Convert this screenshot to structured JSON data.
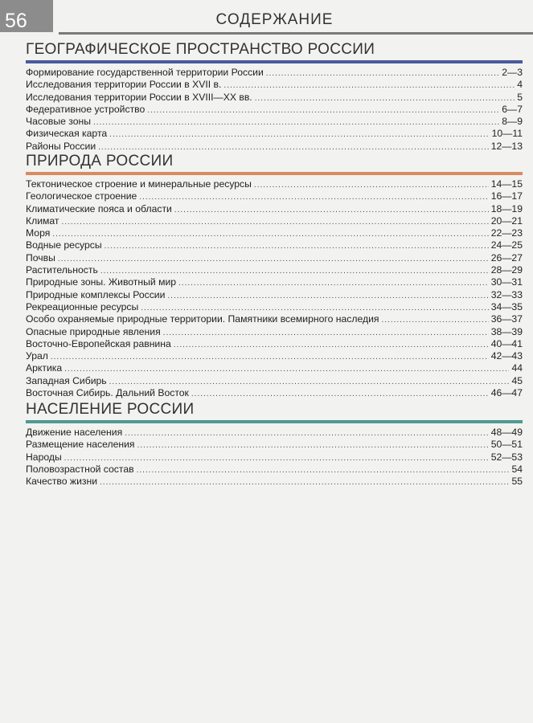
{
  "header": {
    "page_number": "56",
    "title": "СОДЕРЖАНИЕ"
  },
  "colors": {
    "section_1": "#4a5a9c",
    "section_2": "#d88a62",
    "section_3": "#4f9a93"
  },
  "sections": [
    {
      "title": "ГЕОГРАФИЧЕСКОЕ ПРОСТРАНСТВО РОССИИ",
      "items": [
        {
          "label": "Формирование государственной территории России",
          "pages": "2—3"
        },
        {
          "label": "Исследования территории России в XVII в.",
          "pages": "4"
        },
        {
          "label": "Исследования территории России в XVIII—XX вв.",
          "pages": "5"
        },
        {
          "label": "Федеративное устройство",
          "pages": "6—7"
        },
        {
          "label": "Часовые зоны",
          "pages": "8—9"
        },
        {
          "label": "Физическая карта",
          "pages": "10—11"
        },
        {
          "label": "Районы России",
          "pages": "12—13"
        }
      ]
    },
    {
      "title": "ПРИРОДА РОССИИ",
      "items": [
        {
          "label": "Тектоническое строение и минеральные ресурсы",
          "pages": "14—15"
        },
        {
          "label": "Геологическое строение",
          "pages": "16—17"
        },
        {
          "label": "Климатические пояса и области",
          "pages": "18—19"
        },
        {
          "label": "Климат",
          "pages": "20—21"
        },
        {
          "label": "Моря",
          "pages": "22—23"
        },
        {
          "label": "Водные ресурсы",
          "pages": "24—25"
        },
        {
          "label": "Почвы",
          "pages": "26—27"
        },
        {
          "label": "Растительность",
          "pages": "28—29"
        },
        {
          "label": "Природные зоны. Животный мир",
          "pages": "30—31"
        },
        {
          "label": "Природные комплексы России",
          "pages": "32—33"
        },
        {
          "label": "Рекреационные ресурсы",
          "pages": "34—35"
        },
        {
          "label": "Особо охраняемые природные территории. Памятники всемирного наследия",
          "pages": "36—37"
        },
        {
          "label": "Опасные природные явления",
          "pages": "38—39"
        },
        {
          "label": "Восточно-Европейская равнина",
          "pages": "40—41"
        },
        {
          "label": "Урал",
          "pages": "42—43"
        },
        {
          "label": "Арктика",
          "pages": "44"
        },
        {
          "label": "Западная Сибирь",
          "pages": "45"
        },
        {
          "label": "Восточная Сибирь. Дальний Восток",
          "pages": "46—47"
        }
      ]
    },
    {
      "title": "НАСЕЛЕНИЕ РОССИИ",
      "items": [
        {
          "label": "Движение населения",
          "pages": "48—49"
        },
        {
          "label": "Размещение населения",
          "pages": "50—51"
        },
        {
          "label": "Народы",
          "pages": "52—53"
        },
        {
          "label": "Половозрастной состав",
          "pages": "54"
        },
        {
          "label": "Качество жизни",
          "pages": "55"
        }
      ]
    }
  ]
}
